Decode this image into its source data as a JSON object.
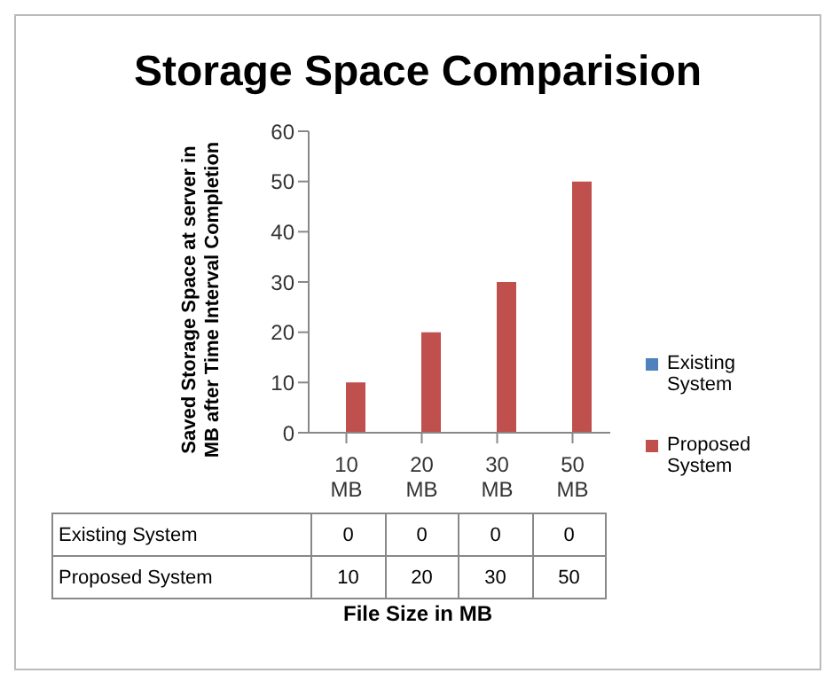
{
  "chart_data": {
    "type": "bar",
    "title": "Storage Space Comparision",
    "ylabel": "Saved Storage Space at server in MB after Time Interval Completion",
    "xlabel": "File Size in MB",
    "categories": [
      "10 MB",
      "20 MB",
      "30 MB",
      "50 MB"
    ],
    "series": [
      {
        "name": "Existing System",
        "color": "#4f81bd",
        "values": [
          0,
          0,
          0,
          0
        ]
      },
      {
        "name": "Proposed System",
        "color": "#c0504d",
        "values": [
          10,
          20,
          30,
          50
        ]
      }
    ],
    "ylim": [
      0,
      60
    ],
    "yticks": [
      0,
      10,
      20,
      30,
      40,
      50,
      60
    ],
    "grid": false,
    "legend": "right",
    "data_labels": true
  }
}
